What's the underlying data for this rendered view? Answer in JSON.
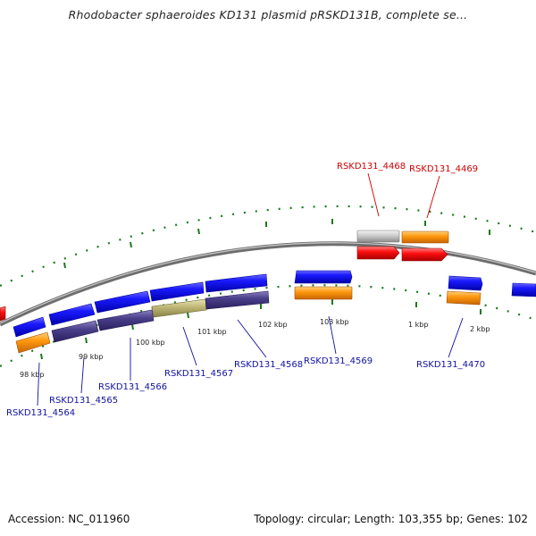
{
  "title": "Rhodobacter sphaeroides KD131 plasmid pRSKD131B, complete se...",
  "footer": {
    "accession": "Accession: NC_011960",
    "summary": "Topology: circular; Length: 103,355 bp; Genes: 102"
  },
  "colors": {
    "backbone": "#8a8a8a",
    "forward_cds": "#1010e0",
    "reverse_cds": "#ff8c00",
    "red_feature": "#ee0000",
    "grey_feature": "#bdbdbd",
    "slate_feature": "#4a3f8a",
    "olive_feature": "#b8b070",
    "tick": "#1a7a1a",
    "label_red": "#cc0000",
    "label_blue": "#1010a0"
  },
  "scale_labels": [
    "98 kbp",
    "99 kbp",
    "100 kbp",
    "101 kbp",
    "102 kbp",
    "103 kbp",
    "1 kbp",
    "2 kbp"
  ],
  "gene_labels": [
    {
      "text": "RSKD131_4468",
      "color": "red"
    },
    {
      "text": "RSKD131_4469",
      "color": "red"
    },
    {
      "text": "RSKD131_4564",
      "color": "blue"
    },
    {
      "text": "RSKD131_4565",
      "color": "blue"
    },
    {
      "text": "RSKD131_4566",
      "color": "blue"
    },
    {
      "text": "RSKD131_4567",
      "color": "blue"
    },
    {
      "text": "RSKD131_4568",
      "color": "blue"
    },
    {
      "text": "RSKD131_4569",
      "color": "blue"
    },
    {
      "text": "RSKD131_4470",
      "color": "blue"
    }
  ]
}
